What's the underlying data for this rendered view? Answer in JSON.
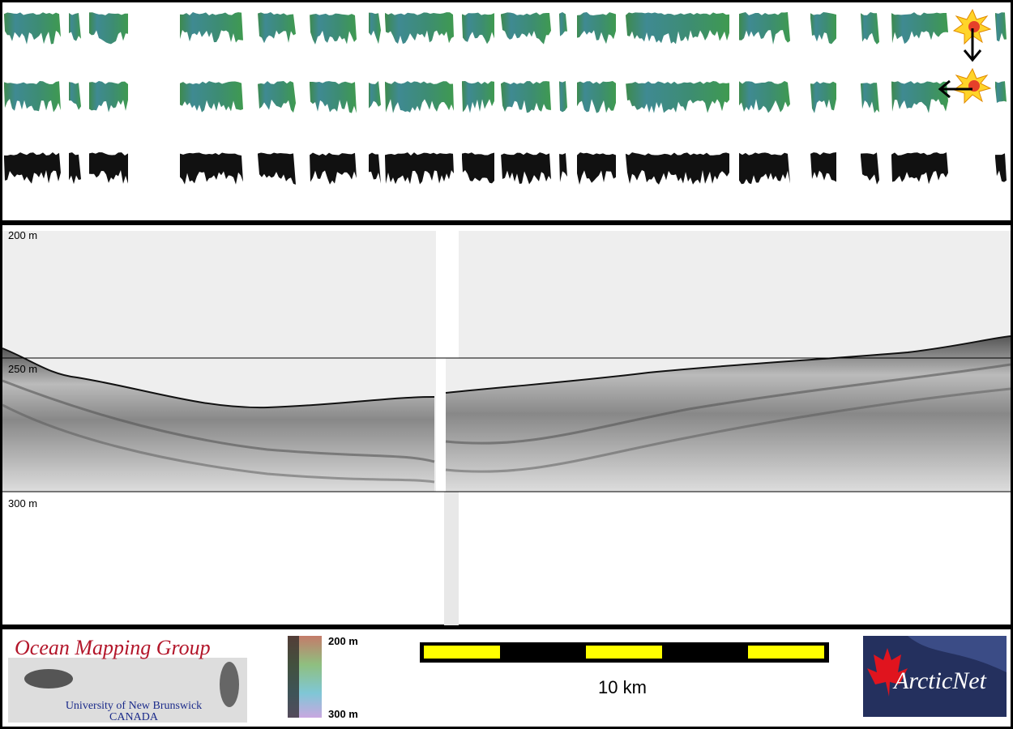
{
  "profile": {
    "depth_labels": [
      "200 m",
      "250 m",
      "300 m"
    ]
  },
  "footer": {
    "logo_title": "Ocean Mapping Group",
    "university": "University of New Brunswick",
    "country": "CANADA",
    "colorbar_top": "200 m",
    "colorbar_bottom": "300 m",
    "scale_label": "10 km",
    "partner": "ArcticNet"
  }
}
